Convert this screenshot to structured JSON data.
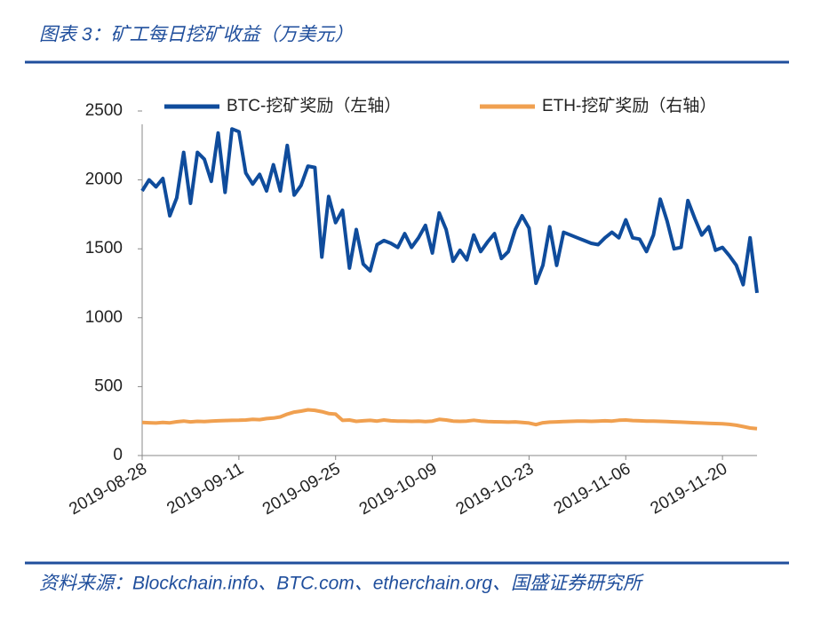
{
  "chart_data": {
    "type": "line",
    "title": "图表 3：矿工每日挖矿收益（万美元）",
    "source": "资料来源：Blockchain.info、BTC.com、etherchain.org、国盛证券研究所",
    "x": [
      "2019-08-28",
      "2019-08-29",
      "2019-08-30",
      "2019-08-31",
      "2019-09-01",
      "2019-09-02",
      "2019-09-03",
      "2019-09-04",
      "2019-09-05",
      "2019-09-06",
      "2019-09-07",
      "2019-09-08",
      "2019-09-09",
      "2019-09-10",
      "2019-09-11",
      "2019-09-12",
      "2019-09-13",
      "2019-09-14",
      "2019-09-15",
      "2019-09-16",
      "2019-09-17",
      "2019-09-18",
      "2019-09-19",
      "2019-09-20",
      "2019-09-21",
      "2019-09-22",
      "2019-09-23",
      "2019-09-24",
      "2019-09-25",
      "2019-09-26",
      "2019-09-27",
      "2019-09-28",
      "2019-09-29",
      "2019-09-30",
      "2019-10-01",
      "2019-10-02",
      "2019-10-03",
      "2019-10-04",
      "2019-10-05",
      "2019-10-06",
      "2019-10-07",
      "2019-10-08",
      "2019-10-09",
      "2019-10-10",
      "2019-10-11",
      "2019-10-12",
      "2019-10-13",
      "2019-10-14",
      "2019-10-15",
      "2019-10-16",
      "2019-10-17",
      "2019-10-18",
      "2019-10-19",
      "2019-10-20",
      "2019-10-21",
      "2019-10-22",
      "2019-10-23",
      "2019-10-24",
      "2019-10-25",
      "2019-10-26",
      "2019-10-27",
      "2019-10-28",
      "2019-10-29",
      "2019-10-30",
      "2019-10-31",
      "2019-11-01",
      "2019-11-02",
      "2019-11-03",
      "2019-11-04",
      "2019-11-05",
      "2019-11-06",
      "2019-11-07",
      "2019-11-08",
      "2019-11-09",
      "2019-11-10",
      "2019-11-11",
      "2019-11-12",
      "2019-11-13",
      "2019-11-14",
      "2019-11-15",
      "2019-11-16",
      "2019-11-17",
      "2019-11-18",
      "2019-11-19",
      "2019-11-20",
      "2019-11-21",
      "2019-11-22",
      "2019-11-23",
      "2019-11-24",
      "2019-11-25"
    ],
    "series": [
      {
        "name": "BTC-挖矿奖励（左轴）",
        "color": "#0f4c9c",
        "values": [
          1920,
          2000,
          1950,
          2010,
          1740,
          1870,
          2200,
          1830,
          2200,
          2150,
          1990,
          2340,
          1910,
          2370,
          2350,
          2050,
          1970,
          2040,
          1920,
          2110,
          1920,
          2250,
          1890,
          1960,
          2100,
          2090,
          1440,
          1880,
          1690,
          1780,
          1360,
          1640,
          1390,
          1340,
          1530,
          1560,
          1540,
          1510,
          1610,
          1510,
          1580,
          1670,
          1470,
          1760,
          1640,
          1410,
          1490,
          1420,
          1600,
          1480,
          1550,
          1610,
          1430,
          1480,
          1640,
          1740,
          1650,
          1250,
          1380,
          1660,
          1380,
          1620,
          1600,
          1580,
          1560,
          1540,
          1530,
          1580,
          1620,
          1580,
          1710,
          1580,
          1570,
          1480,
          1600,
          1860,
          1700,
          1500,
          1510,
          1850,
          1720,
          1600,
          1660,
          1490,
          1510,
          1450,
          1380,
          1240,
          1580,
          1180
        ]
      },
      {
        "name": "ETH-挖矿奖励（右轴）",
        "color": "#f0a050",
        "values": [
          240,
          238,
          236,
          240,
          237,
          245,
          250,
          244,
          248,
          246,
          250,
          252,
          254,
          255,
          256,
          258,
          262,
          260,
          268,
          272,
          280,
          300,
          315,
          322,
          332,
          328,
          318,
          305,
          300,
          255,
          258,
          248,
          252,
          255,
          250,
          258,
          252,
          250,
          250,
          248,
          250,
          246,
          250,
          262,
          258,
          250,
          248,
          250,
          256,
          250,
          246,
          245,
          244,
          242,
          244,
          240,
          236,
          224,
          238,
          242,
          244,
          246,
          248,
          250,
          250,
          248,
          250,
          252,
          250,
          256,
          258,
          254,
          252,
          250,
          250,
          248,
          246,
          244,
          242,
          240,
          238,
          236,
          234,
          232,
          230,
          226,
          220,
          210,
          200,
          195
        ]
      }
    ],
    "xlim": [
      "2019-08-28",
      "2019-11-25"
    ],
    "xticks": [
      "2019-08-28",
      "2019-09-11",
      "2019-09-25",
      "2019-10-09",
      "2019-10-23",
      "2019-11-06",
      "2019-11-20"
    ],
    "ylim": [
      0,
      2500
    ],
    "yticks": [
      0,
      500,
      1000,
      1500,
      2000,
      2500
    ],
    "grid": false,
    "legend": "top"
  }
}
